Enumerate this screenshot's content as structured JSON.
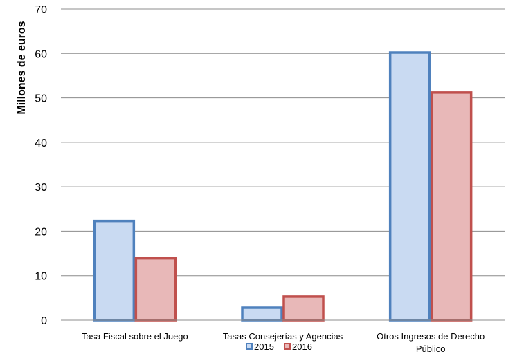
{
  "chart_data": {
    "type": "bar",
    "title": "",
    "ylabel": "Millones de euros",
    "xlabel": "",
    "ylim": [
      0,
      70
    ],
    "yticks": [
      0,
      10,
      20,
      30,
      40,
      50,
      60,
      70
    ],
    "grid": true,
    "legend_position": "bottom",
    "categories": [
      [
        "Tasa Fiscal sobre el Juego"
      ],
      [
        "Tasas Consejerías y Agencias"
      ],
      [
        "Otros Ingresos de Derecho",
        "Público"
      ]
    ],
    "series": [
      {
        "name": "2015",
        "values": [
          22.3,
          2.8,
          60.2
        ],
        "fill": "#c9daf2",
        "stroke": "#4f81bd"
      },
      {
        "name": "2016",
        "values": [
          13.9,
          5.3,
          51.2
        ],
        "fill": "#e8b8b8",
        "stroke": "#c0504d"
      }
    ]
  }
}
